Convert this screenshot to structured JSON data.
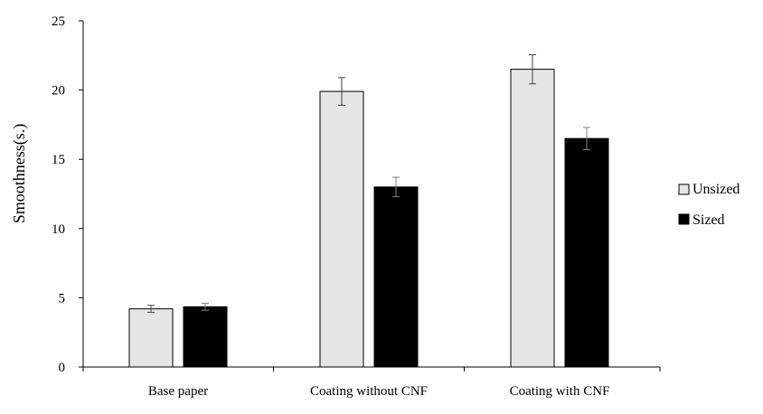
{
  "chart_data": {
    "type": "bar",
    "title": "",
    "xlabel": "",
    "ylabel": "Smoothness(s.)",
    "ylim": [
      0,
      25
    ],
    "yticks": [
      0,
      5,
      10,
      15,
      20,
      25
    ],
    "grid": false,
    "legend_position": "right",
    "categories": [
      "Base paper",
      "Coating without CNF",
      "Coating with CNF"
    ],
    "series": [
      {
        "name": "Unsized",
        "color": "#e7e6e6",
        "values": [
          4.2,
          19.9,
          21.5
        ],
        "errors": [
          0.25,
          1.0,
          1.05
        ]
      },
      {
        "name": "Sized",
        "color": "#000000",
        "values": [
          4.35,
          13.0,
          16.5
        ],
        "errors": [
          0.25,
          0.7,
          0.8
        ]
      }
    ]
  }
}
